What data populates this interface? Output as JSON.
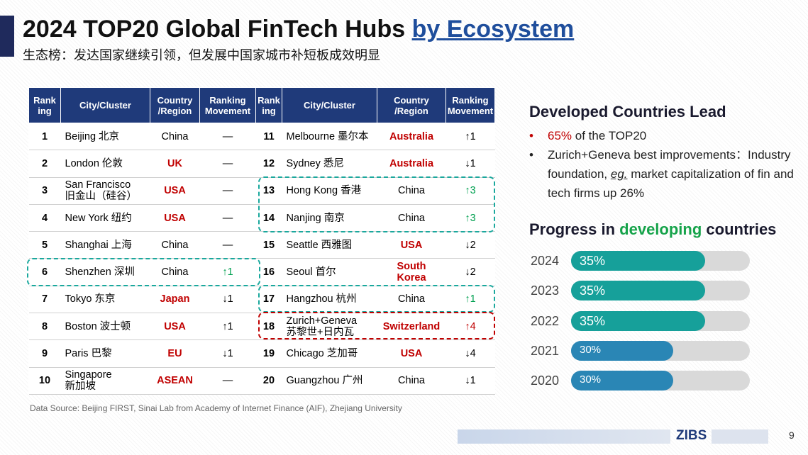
{
  "header": {
    "title": "2024 TOP20 Global FinTech Hubs ",
    "title_highlight": "by Ecosystem",
    "subtitle": "生态榜：发达国家继续引领，但发展中国家城市补短板成效明显"
  },
  "table": {
    "headers": [
      "Rank\ning",
      "City/Cluster",
      "Country\n/Region",
      "Ranking\nMovement",
      "Rank\ning",
      "City/Cluster",
      "Country\n/Region",
      "Ranking\nMovement"
    ],
    "left": [
      {
        "rank": 1,
        "city": "Beijing 北京",
        "country": "China",
        "movement": "—"
      },
      {
        "rank": 2,
        "city": "London 伦敦",
        "country": "UK",
        "country_color": "#c00000",
        "movement": "—"
      },
      {
        "rank": 3,
        "city": "San Francisco\n旧金山（硅谷）",
        "country": "USA",
        "country_color": "#c00000",
        "movement": "—"
      },
      {
        "rank": 4,
        "city": "New York 纽约",
        "country": "USA",
        "country_color": "#c00000",
        "movement": "—"
      },
      {
        "rank": 5,
        "city": "Shanghai 上海",
        "country": "China",
        "movement": "—"
      },
      {
        "rank": 6,
        "city": "Shenzhen 深圳",
        "country": "China",
        "movement": "↑1",
        "movement_color": "#00a050"
      },
      {
        "rank": 7,
        "city": "Tokyo 东京",
        "country": "Japan",
        "country_color": "#c00000",
        "movement": "↓1"
      },
      {
        "rank": 8,
        "city": "Boston 波士顿",
        "country": "USA",
        "country_color": "#c00000",
        "movement": "↑1"
      },
      {
        "rank": 9,
        "city": "Paris 巴黎",
        "country": "EU",
        "country_color": "#c00000",
        "movement": "↓1"
      },
      {
        "rank": 10,
        "city": "Singapore\n新加坡",
        "country": "ASEAN",
        "country_color": "#c00000",
        "movement": "—"
      }
    ],
    "right": [
      {
        "rank": 11,
        "city": "Melbourne 墨尔本",
        "country": "Australia",
        "country_color": "#c00000",
        "movement": "↑1"
      },
      {
        "rank": 12,
        "city": "Sydney 悉尼",
        "country": "Australia",
        "country_color": "#c00000",
        "movement": "↓1"
      },
      {
        "rank": 13,
        "city": "Hong Kong 香港",
        "country": "China",
        "movement": "↑3",
        "movement_color": "#00a050"
      },
      {
        "rank": 14,
        "city": "Nanjing 南京",
        "country": "China",
        "movement": "↑3",
        "movement_color": "#00a050"
      },
      {
        "rank": 15,
        "city": "Seattle 西雅图",
        "country": "USA",
        "country_color": "#c00000",
        "movement": "↓2"
      },
      {
        "rank": 16,
        "city": "Seoul 首尔",
        "country": "South\nKorea",
        "country_color": "#c00000",
        "movement": "↓2"
      },
      {
        "rank": 17,
        "city": "Hangzhou 杭州",
        "country": "China",
        "movement": "↑1",
        "movement_color": "#00a050"
      },
      {
        "rank": 18,
        "city": "Zurich+Geneva\n苏黎世+日内瓦",
        "country": "Switzerland",
        "country_color": "#c00000",
        "movement": "↑4",
        "movement_color": "#c00000"
      },
      {
        "rank": 19,
        "city": "Chicago 芝加哥",
        "country": "USA",
        "country_color": "#c00000",
        "movement": "↓4"
      },
      {
        "rank": 20,
        "city": "Guangzhou 广州",
        "country": "China",
        "movement": "↓1"
      }
    ]
  },
  "panel": {
    "heading": "Developed Countries Lead",
    "bullet1": {
      "highlight": "65%",
      "text": " of the TOP20"
    },
    "bullet2": {
      "before": "Zurich+Geneva best improvements：Industry foundation, ",
      "emphasis": "eg.",
      "after": " market capitalization of fin and tech firms up 26%"
    }
  },
  "chart_data": {
    "type": "bar",
    "title": {
      "before": "Progress in ",
      "highlight": "developing",
      "after": " countries"
    },
    "categories": [
      "2024",
      "2023",
      "2022",
      "2021",
      "2020"
    ],
    "values": [
      35,
      35,
      35,
      30,
      30
    ],
    "value_labels": [
      "35%",
      "35%",
      "35%",
      "30%",
      "30%"
    ],
    "colors": [
      "#16a09a",
      "#16a09a",
      "#16a09a",
      "#2a86b5",
      "#2a86b5"
    ],
    "xlim": [
      14,
      42
    ]
  },
  "footer": {
    "source": "Data Source: Beijing FIRST, Sinai Lab from Academy of Internet Finance (AIF), Zhejiang University",
    "logo": "ZIBS",
    "page": "9"
  }
}
